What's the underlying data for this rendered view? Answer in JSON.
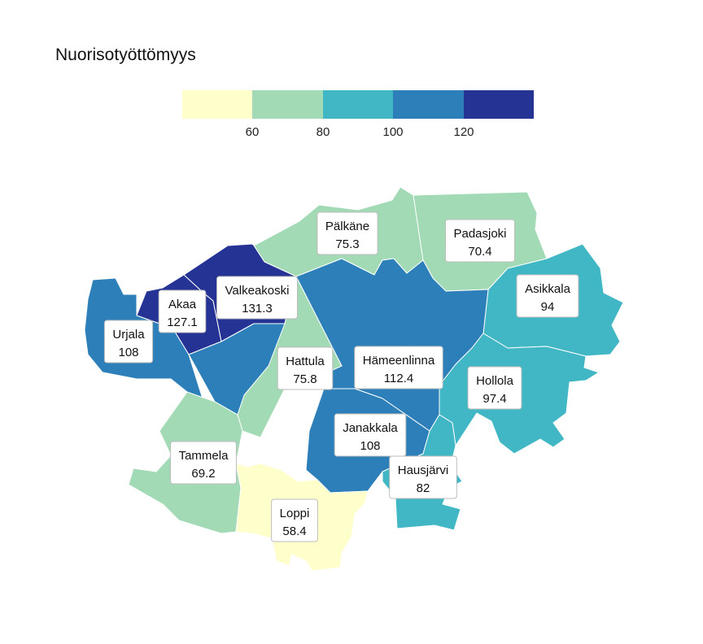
{
  "title": "Nuorisotyöttömyys",
  "legend": {
    "colors": [
      "#ffffcc",
      "#a1dab4",
      "#41b6c4",
      "#2c7fb8",
      "#253494"
    ],
    "ticks": [
      "60",
      "80",
      "100",
      "120"
    ]
  },
  "municipalities": [
    {
      "name": "Pälkäne",
      "value": "75.3",
      "color": "#a1dab4"
    },
    {
      "name": "Padasjoki",
      "value": "70.4",
      "color": "#a1dab4"
    },
    {
      "name": "Asikkala",
      "value": "94",
      "color": "#41b6c4"
    },
    {
      "name": "Akaa",
      "value": "127.1",
      "color": "#253494"
    },
    {
      "name": "Valkeakoski",
      "value": "131.3",
      "color": "#253494"
    },
    {
      "name": "Urjala",
      "value": "108",
      "color": "#2c7fb8"
    },
    {
      "name": "Hattula",
      "value": "75.8",
      "color": "#a1dab4"
    },
    {
      "name": "Hämeenlinna",
      "value": "112.4",
      "color": "#2c7fb8"
    },
    {
      "name": "Hollola",
      "value": "97.4",
      "color": "#41b6c4"
    },
    {
      "name": "Janakkala",
      "value": "108",
      "color": "#2c7fb8"
    },
    {
      "name": "Hausjärvi",
      "value": "82",
      "color": "#41b6c4"
    },
    {
      "name": "Tammela",
      "value": "69.2",
      "color": "#a1dab4"
    },
    {
      "name": "Loppi",
      "value": "58.4",
      "color": "#ffffcc"
    }
  ]
}
